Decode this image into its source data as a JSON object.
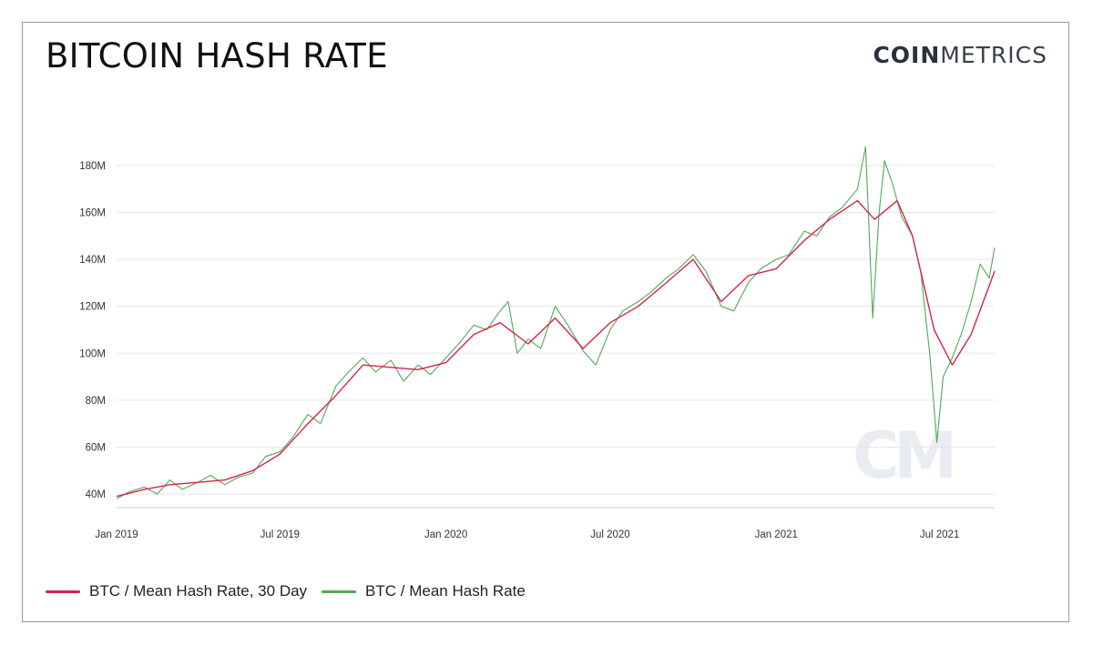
{
  "header": {
    "title": "BITCOIN HASH RATE",
    "brand_bold": "COIN",
    "brand_light": "METRICS"
  },
  "watermark": "CM",
  "colors": {
    "ma30": "#d6234e",
    "raw": "#52aa55",
    "grid": "#e6e6e6",
    "axis": "#cfcfcf"
  },
  "chart_data": {
    "type": "line",
    "x_scale": "time",
    "xlim": [
      "2019-01-01",
      "2021-08-31"
    ],
    "ylim": [
      35000000,
      197000000
    ],
    "grid": "horizontal",
    "legend_position": "bottom-left",
    "y_ticks": [
      {
        "value": 40000000,
        "label": "40M"
      },
      {
        "value": 60000000,
        "label": "60M"
      },
      {
        "value": 80000000,
        "label": "80M"
      },
      {
        "value": 100000000,
        "label": "100M"
      },
      {
        "value": 120000000,
        "label": "120M"
      },
      {
        "value": 140000000,
        "label": "140M"
      },
      {
        "value": 160000000,
        "label": "160M"
      },
      {
        "value": 180000000,
        "label": "180M"
      }
    ],
    "x_ticks": [
      {
        "value": "2019-01-01",
        "label": "Jan 2019"
      },
      {
        "value": "2019-07-01",
        "label": "Jul 2019"
      },
      {
        "value": "2020-01-01",
        "label": "Jan 2020"
      },
      {
        "value": "2020-07-01",
        "label": "Jul 2020"
      },
      {
        "value": "2021-01-01",
        "label": "Jan 2021"
      },
      {
        "value": "2021-07-01",
        "label": "Jul 2021"
      }
    ],
    "series": [
      {
        "name": "BTC / Mean Hash Rate, 30 Day",
        "color": "#d6234e",
        "points": [
          [
            "2019-01-01",
            39000000
          ],
          [
            "2019-02-01",
            42000000
          ],
          [
            "2019-03-01",
            44000000
          ],
          [
            "2019-04-01",
            45000000
          ],
          [
            "2019-05-01",
            46000000
          ],
          [
            "2019-06-01",
            50000000
          ],
          [
            "2019-07-01",
            57000000
          ],
          [
            "2019-08-01",
            70000000
          ],
          [
            "2019-09-01",
            82000000
          ],
          [
            "2019-10-01",
            95000000
          ],
          [
            "2019-11-01",
            94000000
          ],
          [
            "2019-12-01",
            93000000
          ],
          [
            "2020-01-01",
            96000000
          ],
          [
            "2020-02-01",
            108000000
          ],
          [
            "2020-03-01",
            113000000
          ],
          [
            "2020-04-01",
            104000000
          ],
          [
            "2020-05-01",
            115000000
          ],
          [
            "2020-06-01",
            102000000
          ],
          [
            "2020-07-01",
            113000000
          ],
          [
            "2020-08-01",
            120000000
          ],
          [
            "2020-09-01",
            130000000
          ],
          [
            "2020-10-01",
            140000000
          ],
          [
            "2020-11-01",
            122000000
          ],
          [
            "2020-12-01",
            133000000
          ],
          [
            "2021-01-01",
            136000000
          ],
          [
            "2021-02-01",
            148000000
          ],
          [
            "2021-03-01",
            157000000
          ],
          [
            "2021-04-01",
            165000000
          ],
          [
            "2021-04-20",
            157000000
          ],
          [
            "2021-05-15",
            165000000
          ],
          [
            "2021-06-01",
            150000000
          ],
          [
            "2021-06-25",
            110000000
          ],
          [
            "2021-07-15",
            95000000
          ],
          [
            "2021-08-05",
            108000000
          ],
          [
            "2021-08-31",
            135000000
          ]
        ]
      },
      {
        "name": "BTC / Mean Hash Rate",
        "color": "#52aa55",
        "points": [
          [
            "2019-01-01",
            38000000
          ],
          [
            "2019-01-15",
            41000000
          ],
          [
            "2019-02-01",
            43000000
          ],
          [
            "2019-02-15",
            40000000
          ],
          [
            "2019-03-01",
            46000000
          ],
          [
            "2019-03-15",
            42000000
          ],
          [
            "2019-04-01",
            45000000
          ],
          [
            "2019-04-15",
            48000000
          ],
          [
            "2019-05-01",
            44000000
          ],
          [
            "2019-05-15",
            47000000
          ],
          [
            "2019-06-01",
            49000000
          ],
          [
            "2019-06-15",
            56000000
          ],
          [
            "2019-07-01",
            58000000
          ],
          [
            "2019-07-15",
            64000000
          ],
          [
            "2019-08-01",
            74000000
          ],
          [
            "2019-08-15",
            70000000
          ],
          [
            "2019-09-01",
            86000000
          ],
          [
            "2019-09-15",
            92000000
          ],
          [
            "2019-10-01",
            98000000
          ],
          [
            "2019-10-15",
            92000000
          ],
          [
            "2019-11-01",
            97000000
          ],
          [
            "2019-11-15",
            88000000
          ],
          [
            "2019-12-01",
            95000000
          ],
          [
            "2019-12-15",
            91000000
          ],
          [
            "2020-01-01",
            98000000
          ],
          [
            "2020-01-15",
            104000000
          ],
          [
            "2020-02-01",
            112000000
          ],
          [
            "2020-02-15",
            110000000
          ],
          [
            "2020-03-01",
            118000000
          ],
          [
            "2020-03-10",
            122000000
          ],
          [
            "2020-03-20",
            100000000
          ],
          [
            "2020-04-01",
            106000000
          ],
          [
            "2020-04-15",
            102000000
          ],
          [
            "2020-05-01",
            120000000
          ],
          [
            "2020-05-15",
            112000000
          ],
          [
            "2020-06-01",
            101000000
          ],
          [
            "2020-06-15",
            95000000
          ],
          [
            "2020-07-01",
            110000000
          ],
          [
            "2020-07-15",
            118000000
          ],
          [
            "2020-08-01",
            122000000
          ],
          [
            "2020-08-15",
            126000000
          ],
          [
            "2020-09-01",
            132000000
          ],
          [
            "2020-09-15",
            136000000
          ],
          [
            "2020-10-01",
            142000000
          ],
          [
            "2020-10-15",
            135000000
          ],
          [
            "2020-11-01",
            120000000
          ],
          [
            "2020-11-15",
            118000000
          ],
          [
            "2020-12-01",
            130000000
          ],
          [
            "2020-12-15",
            136000000
          ],
          [
            "2021-01-01",
            140000000
          ],
          [
            "2021-01-15",
            142000000
          ],
          [
            "2021-02-01",
            152000000
          ],
          [
            "2021-02-15",
            150000000
          ],
          [
            "2021-03-01",
            158000000
          ],
          [
            "2021-03-15",
            162000000
          ],
          [
            "2021-04-01",
            170000000
          ],
          [
            "2021-04-10",
            188000000
          ],
          [
            "2021-04-18",
            115000000
          ],
          [
            "2021-04-25",
            160000000
          ],
          [
            "2021-05-01",
            182000000
          ],
          [
            "2021-05-10",
            172000000
          ],
          [
            "2021-05-20",
            158000000
          ],
          [
            "2021-06-01",
            150000000
          ],
          [
            "2021-06-10",
            135000000
          ],
          [
            "2021-06-20",
            100000000
          ],
          [
            "2021-06-28",
            62000000
          ],
          [
            "2021-07-05",
            90000000
          ],
          [
            "2021-07-15",
            98000000
          ],
          [
            "2021-07-25",
            108000000
          ],
          [
            "2021-08-05",
            122000000
          ],
          [
            "2021-08-15",
            138000000
          ],
          [
            "2021-08-25",
            132000000
          ],
          [
            "2021-08-31",
            145000000
          ]
        ]
      }
    ]
  },
  "legend": {
    "items": [
      {
        "label": "BTC / Mean Hash Rate, 30 Day",
        "color": "#d6234e"
      },
      {
        "label": "BTC / Mean Hash Rate",
        "color": "#52aa55"
      }
    ]
  }
}
